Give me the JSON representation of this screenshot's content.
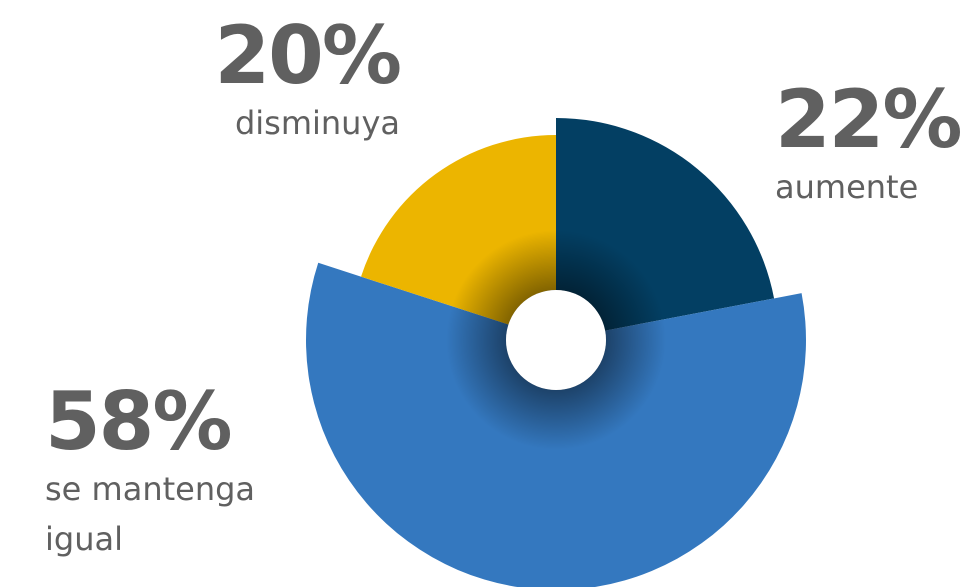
{
  "chart_data": {
    "type": "pie",
    "categories": [
      "aumente",
      "se mantenga igual",
      "disminuya"
    ],
    "values": [
      22,
      58,
      20
    ],
    "value_labels": [
      "22%",
      "58%",
      "20%"
    ],
    "colors": [
      "#033f63",
      "#3478bf",
      "#ecb500"
    ]
  }
}
